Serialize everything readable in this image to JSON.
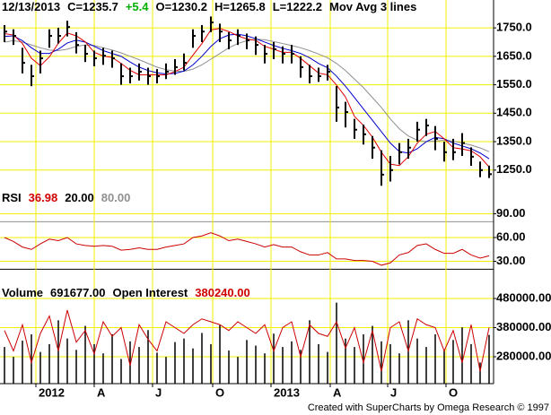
{
  "chart_data": [
    {
      "type": "ohlc",
      "header": [
        {
          "text": "12/13/2013",
          "color": "#000000"
        },
        {
          "text": "C=1235.7",
          "color": "#000000"
        },
        {
          "text": "+5.4",
          "color": "#00b000"
        },
        {
          "text": "O=1230.2",
          "color": "#000000"
        },
        {
          "text": "H=1265.8",
          "color": "#000000"
        },
        {
          "text": "L=1222.2",
          "color": "#000000"
        },
        {
          "text": "Mov Avg 3 lines",
          "color": "#000000"
        }
      ],
      "color": "#000000",
      "high": [
        1760,
        1745,
        1680,
        1620,
        1670,
        1745,
        1750,
        1775,
        1735,
        1690,
        1670,
        1680,
        1670,
        1625,
        1610,
        1625,
        1610,
        1605,
        1625,
        1640,
        1660,
        1745,
        1760,
        1790,
        1765,
        1735,
        1745,
        1730,
        1720,
        1690,
        1700,
        1685,
        1690,
        1650,
        1620,
        1610,
        1620,
        1545,
        1490,
        1430,
        1410,
        1370,
        1320,
        1300,
        1345,
        1360,
        1420,
        1430,
        1405,
        1350,
        1360,
        1380,
        1330,
        1280,
        1265.8
      ],
      "low": [
        1700,
        1690,
        1590,
        1545,
        1590,
        1680,
        1695,
        1720,
        1660,
        1630,
        1615,
        1620,
        1610,
        1550,
        1555,
        1565,
        1550,
        1555,
        1570,
        1585,
        1600,
        1680,
        1700,
        1735,
        1700,
        1675,
        1690,
        1675,
        1655,
        1625,
        1640,
        1625,
        1625,
        1575,
        1555,
        1560,
        1565,
        1420,
        1400,
        1360,
        1340,
        1290,
        1195,
        1210,
        1270,
        1290,
        1350,
        1370,
        1320,
        1280,
        1285,
        1300,
        1265,
        1225,
        1222.2
      ],
      "close": [
        1737,
        1722,
        1627,
        1580,
        1643,
        1722,
        1722,
        1753,
        1690,
        1659,
        1643,
        1652,
        1643,
        1580,
        1580,
        1596,
        1580,
        1580,
        1596,
        1612,
        1627,
        1722,
        1737,
        1769,
        1737,
        1706,
        1722,
        1706,
        1690,
        1659,
        1675,
        1659,
        1659,
        1612,
        1580,
        1580,
        1596,
        1470,
        1454,
        1392,
        1376,
        1329,
        1234,
        1250,
        1313,
        1329,
        1392,
        1407,
        1360,
        1313,
        1313,
        1345,
        1297,
        1250,
        1235.7
      ],
      "moving_averages": [
        {
          "color": "#e00000",
          "values": [
            1730,
            1725,
            1695,
            1643,
            1617,
            1648,
            1696,
            1732,
            1722,
            1701,
            1664,
            1651,
            1646,
            1625,
            1601,
            1585,
            1585,
            1585,
            1585,
            1596,
            1612,
            1654,
            1695,
            1743,
            1748,
            1737,
            1722,
            1711,
            1706,
            1685,
            1675,
            1664,
            1664,
            1643,
            1617,
            1591,
            1585,
            1549,
            1507,
            1439,
            1407,
            1366,
            1313,
            1271,
            1266,
            1297,
            1345,
            1376,
            1386,
            1360,
            1329,
            1324,
            1318,
            1297,
            1261
          ]
        },
        {
          "color": "#0000cc",
          "values": [
            1720,
            1722,
            1705,
            1680,
            1660,
            1660,
            1675,
            1697,
            1707,
            1700,
            1685,
            1670,
            1660,
            1650,
            1630,
            1612,
            1600,
            1592,
            1588,
            1590,
            1598,
            1620,
            1650,
            1685,
            1712,
            1725,
            1728,
            1722,
            1712,
            1700,
            1688,
            1678,
            1670,
            1660,
            1645,
            1625,
            1610,
            1580,
            1545,
            1505,
            1465,
            1425,
            1385,
            1345,
            1315,
            1310,
            1325,
            1350,
            1365,
            1360,
            1345,
            1335,
            1325,
            1310,
            1290
          ]
        },
        {
          "color": "#909090",
          "values": [
            1700,
            1705,
            1700,
            1690,
            1680,
            1672,
            1670,
            1675,
            1685,
            1690,
            1688,
            1680,
            1672,
            1662,
            1650,
            1638,
            1625,
            1612,
            1603,
            1598,
            1597,
            1605,
            1620,
            1640,
            1660,
            1680,
            1695,
            1705,
            1710,
            1708,
            1702,
            1695,
            1688,
            1680,
            1670,
            1658,
            1645,
            1625,
            1600,
            1570,
            1540,
            1505,
            1470,
            1430,
            1395,
            1370,
            1355,
            1350,
            1352,
            1355,
            1352,
            1345,
            1338,
            1328,
            1315
          ]
        }
      ],
      "xlim": [
        -0.5,
        54.5
      ],
      "ylim": [
        1180,
        1848
      ],
      "yticks": [
        {
          "value": 1250,
          "label": "1250.0"
        },
        {
          "value": 1350,
          "label": "1350.0"
        },
        {
          "value": 1450,
          "label": "1450.0"
        },
        {
          "value": 1550,
          "label": "1550.0"
        },
        {
          "value": 1650,
          "label": "1650.0"
        },
        {
          "value": 1750,
          "label": "1750.0"
        }
      ],
      "grid": true
    },
    {
      "type": "line",
      "header": [
        {
          "text": "RSI",
          "color": "#000000"
        },
        {
          "text": "36.98",
          "color": "#d00000"
        },
        {
          "text": "20.00",
          "color": "#000000"
        },
        {
          "text": "80.00",
          "color": "#909090"
        }
      ],
      "series": [
        {
          "color": "#cc0000",
          "values": [
            60,
            55,
            48,
            45,
            52,
            58,
            56,
            60,
            52,
            50,
            49,
            50,
            49,
            44,
            45,
            47,
            45,
            45,
            48,
            50,
            52,
            60,
            62,
            66,
            62,
            56,
            58,
            55,
            52,
            48,
            51,
            48,
            48,
            42,
            38,
            38,
            41,
            33,
            33,
            31,
            31,
            30,
            25,
            28,
            38,
            41,
            50,
            52,
            45,
            40,
            40,
            45,
            38,
            34,
            36.98
          ]
        }
      ],
      "levels": [
        {
          "value": 20,
          "color": "#000000"
        },
        {
          "value": 80,
          "color": "#909090"
        }
      ],
      "xlim": [
        -0.5,
        54.5
      ],
      "ylim": [
        0,
        120
      ],
      "yticks": [
        {
          "value": 30,
          "label": "30.00"
        },
        {
          "value": 60,
          "label": "60.00"
        },
        {
          "value": 90,
          "label": "90.00"
        }
      ],
      "grid": true
    },
    {
      "type": "bar",
      "header": [
        {
          "text": "Volume",
          "color": "#000000"
        },
        {
          "text": "691677.00",
          "color": "#000000"
        },
        {
          "text": "Open Interest",
          "color": "#000000"
        },
        {
          "text": "380240.00",
          "color": "#d00000"
        }
      ],
      "series": [
        {
          "type": "bar",
          "color": "#000000",
          "axis": "y2",
          "values": [
            520000,
            380000,
            610000,
            700000,
            450000,
            560000,
            900000,
            640000,
            480000,
            820000,
            560000,
            430000,
            700000,
            350000,
            600000,
            520000,
            760000,
            440000,
            380000,
            590000,
            640000,
            500000,
            720000,
            560000,
            830000,
            470000,
            380000,
            620000,
            540000,
            430000,
            710000,
            520000,
            600000,
            480000,
            900000,
            560000,
            450000,
            1150000,
            640000,
            520000,
            700000,
            820000,
            600000,
            560000,
            430000,
            900000,
            640000,
            520000,
            700000,
            480000,
            620000,
            800000,
            560000,
            300000,
            691677
          ]
        },
        {
          "type": "line",
          "color": "#cc0000",
          "values": [
            370000,
            300000,
            390000,
            260000,
            360000,
            420000,
            300000,
            440000,
            330000,
            370000,
            290000,
            400000,
            350000,
            380000,
            250000,
            390000,
            340000,
            300000,
            400000,
            380000,
            360000,
            390000,
            410000,
            400000,
            390000,
            370000,
            400000,
            380000,
            360000,
            390000,
            300000,
            380000,
            400000,
            280000,
            390000,
            360000,
            350000,
            400000,
            310000,
            380000,
            260000,
            370000,
            230000,
            380000,
            400000,
            300000,
            410000,
            390000,
            380000,
            300000,
            370000,
            260000,
            390000,
            230000,
            380240
          ]
        }
      ],
      "xlim": [
        -0.5,
        54.5
      ],
      "xticks": [
        {
          "value": 3.5,
          "label": "2012"
        },
        {
          "value": 10,
          "label": "A"
        },
        {
          "value": 16.5,
          "label": "J"
        },
        {
          "value": 23.2,
          "label": "O"
        },
        {
          "value": 29.7,
          "label": "2013"
        },
        {
          "value": 36.3,
          "label": "A"
        },
        {
          "value": 42.7,
          "label": "J"
        },
        {
          "value": 49.2,
          "label": "O"
        }
      ],
      "ylim": [
        187700,
        526150
      ],
      "yticks": [
        {
          "value": 280000,
          "label": "280000.00"
        },
        {
          "value": 380000,
          "label": "380000.00"
        },
        {
          "value": 480000,
          "label": "480000.00"
        }
      ],
      "y2lim": [
        0,
        1400000
      ],
      "grid": true
    }
  ],
  "footer": "Created with SuperCharts by Omega Research © 1997"
}
